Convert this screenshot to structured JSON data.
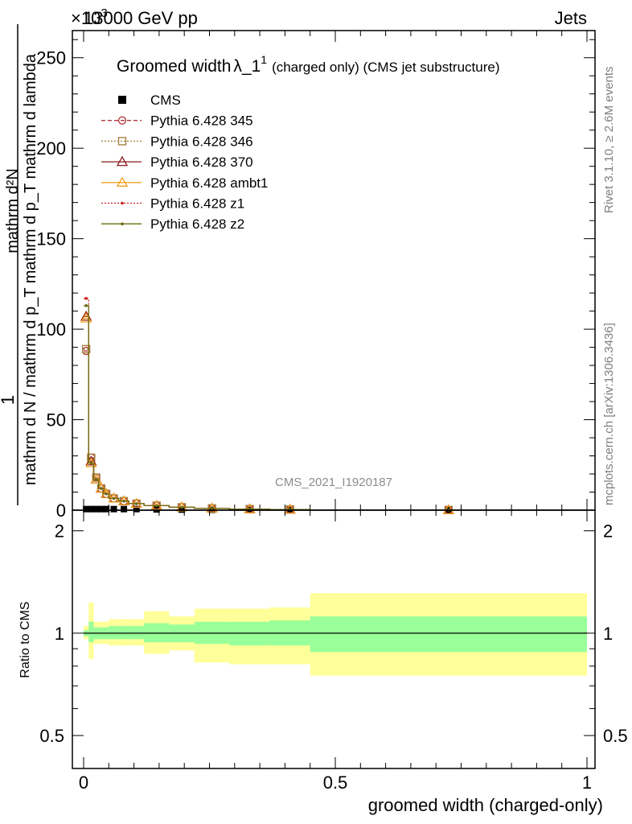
{
  "header": {
    "left": "13000 GeV pp",
    "right": "Jets",
    "y_exponent": "×10",
    "y_exponent_power": "3"
  },
  "side_labels": {
    "rivet": "Rivet 3.1.10, ≥ 2.6M events",
    "mcplots": "mcplots.cern.ch [arXiv:1306.3436]"
  },
  "watermark": "CMS_2021_I1920187",
  "main_title": {
    "prefix": "Groomed width",
    "lambda": "λ_1",
    "power": "1",
    "rest": "(charged only) (CMS jet substructure)"
  },
  "axes": {
    "main_ylabel_numerator": "mathrm d²N",
    "main_ylabel_full": "mathrm d N / mathrm d p_T mathrm d p_T mathrm d lambda",
    "main_ylabel_one": "1",
    "ratio_ylabel": "Ratio to CMS",
    "xlabel": "groomed width (charged-only)",
    "main_yticks": [
      "0",
      "50",
      "100",
      "150",
      "200",
      "250"
    ],
    "ratio_yticks": [
      "0.5",
      "1",
      "2"
    ],
    "xticks": [
      "0",
      "0.5",
      "1"
    ]
  },
  "legend": [
    {
      "label": "CMS",
      "color": "#000000",
      "marker": "square-filled",
      "line": "none"
    },
    {
      "label": "Pythia 6.428 345",
      "color": "#b0383d",
      "marker": "circle-open",
      "line": "dashed"
    },
    {
      "label": "Pythia 6.428 346",
      "color": "#a37c3a",
      "marker": "square-open",
      "line": "dotted"
    },
    {
      "label": "Pythia 6.428 370",
      "color": "#8a1a1a",
      "marker": "triangle-open",
      "line": "solid"
    },
    {
      "label": "Pythia 6.428 ambt1",
      "color": "#f0a020",
      "marker": "triangle-open",
      "line": "solid"
    },
    {
      "label": "Pythia 6.428 z1",
      "color": "#d02020",
      "marker": "dot",
      "line": "dotted"
    },
    {
      "label": "Pythia 6.428 z2",
      "color": "#6b6b10",
      "marker": "dot",
      "line": "solid"
    }
  ],
  "chart_data": [
    {
      "type": "line",
      "title": "Groomed width λ_1^1 (charged only) (CMS jet substructure)",
      "xlabel": "groomed width (charged-only)",
      "ylabel": "1 / mathrm d N / mathrm d p_T mathrm d p_T mathrm d lambda",
      "xlim": [
        0,
        1
      ],
      "ylim": [
        0,
        265
      ],
      "y_scale_factor": "×10^3",
      "bin_edges": [
        0,
        0.01,
        0.02,
        0.03,
        0.04,
        0.05,
        0.07,
        0.09,
        0.12,
        0.17,
        0.22,
        0.29,
        0.37,
        0.45,
        1.0
      ],
      "x": [
        0.005,
        0.015,
        0.025,
        0.035,
        0.045,
        0.06,
        0.08,
        0.105,
        0.145,
        0.195,
        0.255,
        0.33,
        0.41,
        0.725
      ],
      "series": [
        {
          "name": "CMS",
          "values": [
            0.6,
            0.6,
            0.6,
            0.6,
            0.6,
            0.6,
            0.6,
            0.6,
            0.4,
            0.3,
            0.2,
            0.15,
            0.1,
            0.05
          ]
        },
        {
          "name": "Pythia 6.428 345",
          "values": [
            88,
            29,
            18,
            12,
            9,
            6.5,
            5,
            3.6,
            2.5,
            1.6,
            1.0,
            0.6,
            0.4,
            0.1
          ]
        },
        {
          "name": "Pythia 6.428 346",
          "values": [
            89,
            29,
            18,
            12,
            9,
            6.5,
            5,
            3.6,
            2.5,
            1.6,
            1.0,
            0.6,
            0.4,
            0.1
          ]
        },
        {
          "name": "Pythia 6.428 370",
          "values": [
            107,
            27,
            17,
            12,
            9,
            6.5,
            5,
            3.6,
            2.5,
            1.6,
            1.0,
            0.6,
            0.4,
            0.1
          ]
        },
        {
          "name": "Pythia 6.428 ambt1",
          "values": [
            106,
            26,
            17,
            12,
            9,
            6.5,
            5,
            3.6,
            2.5,
            1.6,
            1.0,
            0.6,
            0.4,
            0.1
          ]
        },
        {
          "name": "Pythia 6.428 z1",
          "values": [
            117,
            26,
            17,
            12,
            9,
            6.5,
            5,
            3.6,
            2.5,
            1.6,
            1.0,
            0.6,
            0.4,
            0.1
          ]
        },
        {
          "name": "Pythia 6.428 z2",
          "values": [
            113,
            26,
            17,
            12,
            9,
            6.5,
            5,
            3.6,
            2.5,
            1.6,
            1.0,
            0.6,
            0.4,
            0.1
          ]
        }
      ]
    },
    {
      "type": "area",
      "ylabel": "Ratio to CMS",
      "xlabel": "groomed width (charged-only)",
      "xlim": [
        0,
        1
      ],
      "ylim": [
        0.4,
        2.3
      ],
      "y_scale": "log",
      "bin_edges": [
        0,
        0.01,
        0.02,
        0.03,
        0.04,
        0.05,
        0.07,
        0.09,
        0.12,
        0.17,
        0.22,
        0.29,
        0.37,
        0.45,
        1.0
      ],
      "band_inner": [
        [
          0.98,
          1.02
        ],
        [
          0.94,
          1.08
        ],
        [
          0.96,
          1.04
        ],
        [
          0.96,
          1.04
        ],
        [
          0.96,
          1.04
        ],
        [
          0.96,
          1.05
        ],
        [
          0.96,
          1.05
        ],
        [
          0.96,
          1.05
        ],
        [
          0.94,
          1.07
        ],
        [
          0.94,
          1.06
        ],
        [
          0.93,
          1.08
        ],
        [
          0.92,
          1.08
        ],
        [
          0.92,
          1.09
        ],
        [
          0.88,
          1.12
        ]
      ],
      "band_outer": [
        [
          0.96,
          1.05
        ],
        [
          0.84,
          1.23
        ],
        [
          0.93,
          1.08
        ],
        [
          0.93,
          1.08
        ],
        [
          0.93,
          1.08
        ],
        [
          0.92,
          1.1
        ],
        [
          0.92,
          1.1
        ],
        [
          0.92,
          1.1
        ],
        [
          0.87,
          1.16
        ],
        [
          0.89,
          1.12
        ],
        [
          0.82,
          1.18
        ],
        [
          0.81,
          1.18
        ],
        [
          0.81,
          1.19
        ],
        [
          0.75,
          1.31
        ]
      ],
      "reference_line": 1
    }
  ],
  "colors": {
    "band_inner": "#99ff99",
    "band_outer": "#ffff99",
    "frame": "#000000"
  }
}
